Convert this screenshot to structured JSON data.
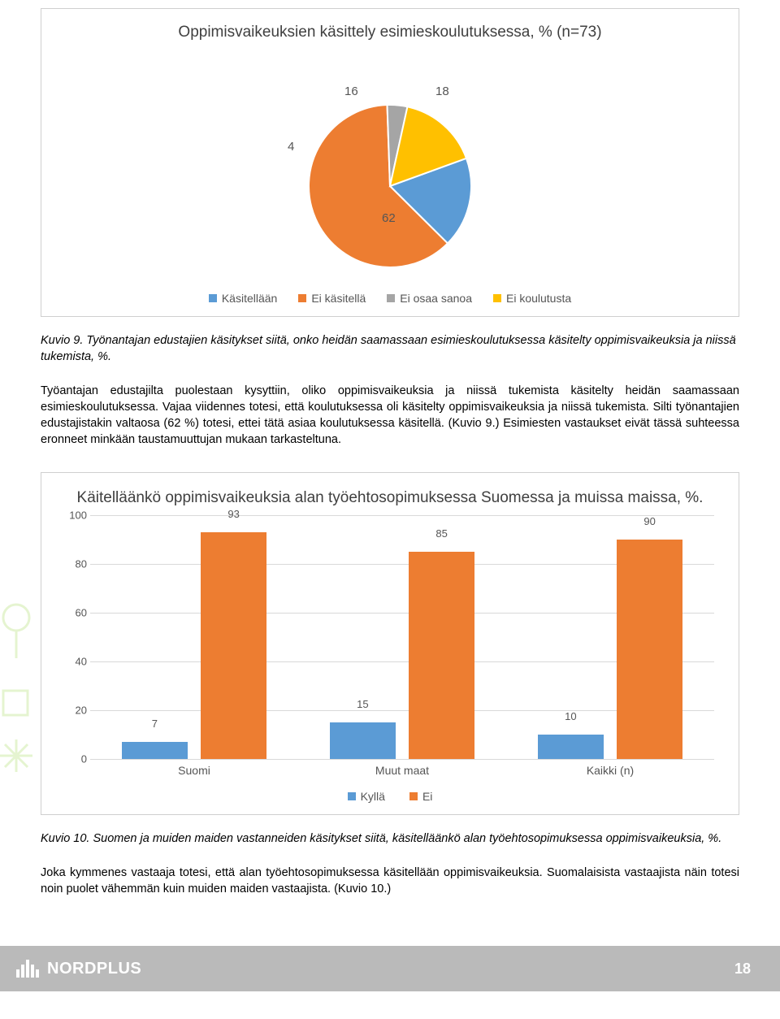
{
  "pie_chart": {
    "title": "Oppimisvaikeuksien käsittely esimieskoulutuksessa, % (n=73)",
    "type": "pie",
    "slices": [
      {
        "label": "Käsitellään",
        "value": 18,
        "color": "#5b9bd5"
      },
      {
        "label": "Ei käsitellä",
        "value": 62,
        "color": "#ed7d31"
      },
      {
        "label": "Ei osaa sanoa",
        "value": 4,
        "color": "#a5a5a5"
      },
      {
        "label": "Ei koulutusta",
        "value": 16,
        "color": "#ffc000"
      }
    ],
    "label_fontsize": 14,
    "title_fontsize": 19,
    "background_color": "#ffffff",
    "legend_position": "bottom"
  },
  "caption1": "Kuvio 9. Työnantajan edustajien käsitykset siitä, onko heidän saamassaan esimieskoulutuksessa käsitelty oppimisvaikeuksia ja niissä tukemista, %.",
  "para1": "Työantajan edustajilta puolestaan kysyttiin, oliko oppimisvaikeuksia ja niissä tukemista käsitelty heidän saamassaan esimieskoulutuksessa. Vajaa viidennes totesi, että koulutuksessa oli käsitelty oppimisvaikeuksia ja niissä tukemista. Silti työnantajien edustajistakin valtaosa (62 %) totesi, ettei tätä asiaa koulutuksessa käsitellä. (Kuvio 9.) Esimiesten vastaukset eivät tässä suhteessa eronneet minkään taustamuuttujan mukaan tarkasteltuna.",
  "bar_chart": {
    "title": "Käitelläänkö oppimisvaikeuksia alan työehtosopimuksessa Suomessa ja muissa maissa, %.",
    "type": "bar",
    "categories": [
      "Suomi",
      "Muut maat",
      "Kaikki (n)"
    ],
    "series": [
      {
        "name": "Kyllä",
        "color": "#5b9bd5",
        "values": [
          7,
          15,
          10
        ]
      },
      {
        "name": "Ei",
        "color": "#ed7d31",
        "values": [
          93,
          85,
          90
        ]
      }
    ],
    "ylim": [
      0,
      100
    ],
    "ytick_step": 20,
    "background_color": "#ffffff",
    "grid_color": "#d9d9d9",
    "label_fontsize": 13,
    "title_fontsize": 19,
    "bar_width": 0.42
  },
  "caption2": "Kuvio 10. Suomen ja muiden maiden vastanneiden käsitykset siitä, käsitelläänkö alan työehtosopimuksessa oppimisvaikeuksia, %.",
  "para2": "Joka kymmenes vastaaja totesi, että alan työehtosopimuksessa käsitellään oppimisvaikeuksia. Suomalaisista vastaajista näin totesi noin puolet vähemmän kuin muiden maiden vastaajista. (Kuvio 10.)",
  "footer": {
    "brand": "NORDPLUS",
    "page": "18"
  }
}
